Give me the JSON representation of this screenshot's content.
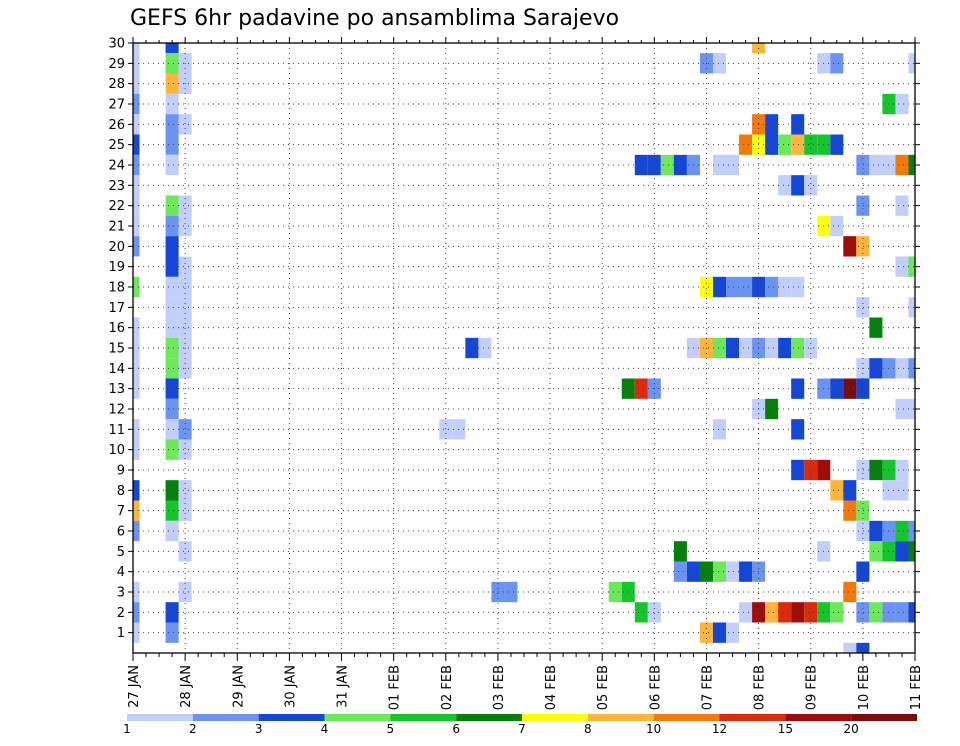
{
  "chart_data": {
    "type": "heatmap",
    "title": "GEFS 6hr padavine po ansamblima Sarajevo",
    "xlabel": "",
    "ylabel": "",
    "x_labels": [
      "27 JAN",
      "28 JAN",
      "29 JAN",
      "30 JAN",
      "31 JAN",
      "01 FEB",
      "02 FEB",
      "03 FEB",
      "04 FEB",
      "05 FEB",
      "06 FEB",
      "07 FEB",
      "08 FEB",
      "09 FEB",
      "10 FEB",
      "11 FEB"
    ],
    "y_labels": [
      "1",
      "2",
      "3",
      "4",
      "5",
      "6",
      "7",
      "8",
      "9",
      "10",
      "11",
      "12",
      "13",
      "14",
      "15",
      "16",
      "17",
      "18",
      "19",
      "20",
      "21",
      "22",
      "23",
      "24",
      "25",
      "26",
      "27",
      "28",
      "29",
      "30"
    ],
    "ylim": [
      0,
      30
    ],
    "time_steps": 61,
    "grid": true,
    "legend": {
      "position": "bottom",
      "labels": [
        "1",
        "2",
        "3",
        "4",
        "5",
        "6",
        "7",
        "8",
        "10",
        "12",
        "15",
        "20"
      ],
      "colors": [
        "#c1cffa",
        "#6b94f2",
        "#1446d8",
        "#6ce85a",
        "#16c42c",
        "#06800c",
        "#ffff0a",
        "#ffb43c",
        "#f37a0a",
        "#dc2a0a",
        "#a00c0a",
        "#7a0c0a"
      ]
    },
    "cells": [
      {
        "member": 30,
        "cells": [
          [
            0,
            1
          ],
          [
            3,
            3
          ],
          [
            48,
            8
          ]
        ]
      },
      {
        "member": 29,
        "cells": [
          [
            0,
            1
          ],
          [
            3,
            4
          ],
          [
            4,
            1
          ],
          [
            44,
            2
          ],
          [
            45,
            1
          ],
          [
            53,
            1
          ],
          [
            54,
            2
          ],
          [
            60,
            1
          ]
        ]
      },
      {
        "member": 28,
        "cells": [
          [
            0,
            1
          ],
          [
            3,
            8
          ],
          [
            4,
            1
          ]
        ]
      },
      {
        "member": 27,
        "cells": [
          [
            0,
            2
          ],
          [
            3,
            1
          ],
          [
            58,
            5
          ],
          [
            59,
            1
          ]
        ]
      },
      {
        "member": 26,
        "cells": [
          [
            0,
            1
          ],
          [
            3,
            2
          ],
          [
            4,
            1
          ],
          [
            48,
            9
          ],
          [
            49,
            3
          ],
          [
            51,
            3
          ]
        ]
      },
      {
        "member": 25,
        "cells": [
          [
            0,
            3
          ],
          [
            3,
            2
          ],
          [
            47,
            9
          ],
          [
            48,
            7
          ],
          [
            49,
            3
          ],
          [
            50,
            4
          ],
          [
            51,
            8
          ],
          [
            52,
            5
          ],
          [
            53,
            5
          ],
          [
            54,
            3
          ]
        ]
      },
      {
        "member": 24,
        "cells": [
          [
            0,
            2
          ],
          [
            3,
            1
          ],
          [
            39,
            3
          ],
          [
            40,
            3
          ],
          [
            41,
            4
          ],
          [
            42,
            3
          ],
          [
            43,
            2
          ],
          [
            45,
            1
          ],
          [
            46,
            1
          ],
          [
            56,
            2
          ],
          [
            57,
            1
          ],
          [
            58,
            1
          ],
          [
            59,
            9
          ],
          [
            60,
            6
          ]
        ]
      },
      {
        "member": 23,
        "cells": [
          [
            0,
            1
          ],
          [
            50,
            1
          ],
          [
            51,
            3
          ],
          [
            52,
            1
          ]
        ]
      },
      {
        "member": 22,
        "cells": [
          [
            0,
            1
          ],
          [
            3,
            4
          ],
          [
            4,
            1
          ],
          [
            56,
            2
          ],
          [
            59,
            1
          ]
        ]
      },
      {
        "member": 21,
        "cells": [
          [
            0,
            1
          ],
          [
            3,
            2
          ],
          [
            4,
            1
          ],
          [
            53,
            7
          ],
          [
            54,
            1
          ]
        ]
      },
      {
        "member": 20,
        "cells": [
          [
            0,
            2
          ],
          [
            3,
            3
          ],
          [
            55,
            11
          ],
          [
            56,
            8
          ]
        ]
      },
      {
        "member": 19,
        "cells": [
          [
            3,
            3
          ],
          [
            4,
            1
          ],
          [
            59,
            1
          ],
          [
            60,
            4
          ]
        ]
      },
      {
        "member": 18,
        "cells": [
          [
            0,
            4
          ],
          [
            3,
            1
          ],
          [
            4,
            1
          ],
          [
            44,
            7
          ],
          [
            45,
            3
          ],
          [
            46,
            2
          ],
          [
            47,
            2
          ],
          [
            48,
            3
          ],
          [
            49,
            2
          ],
          [
            50,
            1
          ],
          [
            51,
            1
          ]
        ]
      },
      {
        "member": 17,
        "cells": [
          [
            3,
            1
          ],
          [
            4,
            1
          ],
          [
            56,
            1
          ],
          [
            60,
            1
          ]
        ]
      },
      {
        "member": 16,
        "cells": [
          [
            0,
            1
          ],
          [
            3,
            1
          ],
          [
            4,
            1
          ],
          [
            57,
            6
          ]
        ]
      },
      {
        "member": 15,
        "cells": [
          [
            0,
            1
          ],
          [
            3,
            4
          ],
          [
            4,
            1
          ],
          [
            26,
            3
          ],
          [
            27,
            1
          ],
          [
            43,
            1
          ],
          [
            44,
            8
          ],
          [
            45,
            4
          ],
          [
            46,
            3
          ],
          [
            47,
            1
          ],
          [
            48,
            2
          ],
          [
            49,
            1
          ],
          [
            50,
            3
          ],
          [
            51,
            4
          ],
          [
            52,
            1
          ]
        ]
      },
      {
        "member": 14,
        "cells": [
          [
            0,
            1
          ],
          [
            3,
            4
          ],
          [
            4,
            1
          ],
          [
            56,
            1
          ],
          [
            57,
            3
          ],
          [
            58,
            2
          ],
          [
            59,
            1
          ],
          [
            60,
            2
          ]
        ]
      },
      {
        "member": 13,
        "cells": [
          [
            0,
            1
          ],
          [
            3,
            3
          ],
          [
            38,
            6
          ],
          [
            39,
            10
          ],
          [
            40,
            2
          ],
          [
            51,
            3
          ],
          [
            53,
            2
          ],
          [
            54,
            3
          ],
          [
            55,
            12
          ],
          [
            56,
            3
          ]
        ]
      },
      {
        "member": 12,
        "cells": [
          [
            3,
            2
          ],
          [
            48,
            1
          ],
          [
            49,
            6
          ],
          [
            59,
            1
          ],
          [
            60,
            1
          ]
        ]
      },
      {
        "member": 11,
        "cells": [
          [
            0,
            1
          ],
          [
            3,
            1
          ],
          [
            4,
            2
          ],
          [
            24,
            1
          ],
          [
            25,
            1
          ],
          [
            45,
            1
          ],
          [
            51,
            3
          ]
        ]
      },
      {
        "member": 10,
        "cells": [
          [
            0,
            1
          ],
          [
            3,
            4
          ],
          [
            4,
            1
          ]
        ]
      },
      {
        "member": 9,
        "cells": [
          [
            51,
            3
          ],
          [
            52,
            10
          ],
          [
            53,
            11
          ],
          [
            56,
            1
          ],
          [
            57,
            6
          ],
          [
            58,
            5
          ],
          [
            59,
            1
          ]
        ]
      },
      {
        "member": 8,
        "cells": [
          [
            0,
            3
          ],
          [
            3,
            6
          ],
          [
            4,
            1
          ],
          [
            54,
            8
          ],
          [
            55,
            3
          ],
          [
            58,
            1
          ],
          [
            59,
            1
          ]
        ]
      },
      {
        "member": 7,
        "cells": [
          [
            0,
            8
          ],
          [
            3,
            5
          ],
          [
            4,
            1
          ],
          [
            55,
            9
          ],
          [
            56,
            4
          ]
        ]
      },
      {
        "member": 6,
        "cells": [
          [
            0,
            2
          ],
          [
            3,
            1
          ],
          [
            56,
            1
          ],
          [
            57,
            3
          ],
          [
            58,
            2
          ],
          [
            59,
            5
          ],
          [
            60,
            2
          ]
        ]
      },
      {
        "member": 5,
        "cells": [
          [
            4,
            1
          ],
          [
            42,
            6
          ],
          [
            53,
            1
          ],
          [
            57,
            4
          ],
          [
            58,
            5
          ],
          [
            59,
            3
          ],
          [
            60,
            6
          ]
        ]
      },
      {
        "member": 4,
        "cells": [
          [
            42,
            2
          ],
          [
            43,
            3
          ],
          [
            44,
            6
          ],
          [
            45,
            4
          ],
          [
            46,
            1
          ],
          [
            47,
            3
          ],
          [
            48,
            2
          ],
          [
            56,
            3
          ]
        ]
      },
      {
        "member": 3,
        "cells": [
          [
            0,
            1
          ],
          [
            4,
            1
          ],
          [
            28,
            2
          ],
          [
            29,
            2
          ],
          [
            37,
            4
          ],
          [
            38,
            5
          ],
          [
            55,
            9
          ]
        ]
      },
      {
        "member": 2,
        "cells": [
          [
            0,
            2
          ],
          [
            3,
            3
          ],
          [
            39,
            5
          ],
          [
            40,
            1
          ],
          [
            47,
            1
          ],
          [
            48,
            11
          ],
          [
            49,
            8
          ],
          [
            50,
            10
          ],
          [
            51,
            11
          ],
          [
            52,
            10
          ],
          [
            53,
            5
          ],
          [
            54,
            4
          ],
          [
            56,
            2
          ],
          [
            57,
            4
          ],
          [
            58,
            2
          ],
          [
            59,
            2
          ],
          [
            60,
            3
          ]
        ]
      },
      {
        "member": 1,
        "cells": [
          [
            0,
            1
          ],
          [
            3,
            2
          ],
          [
            44,
            8
          ],
          [
            45,
            3
          ],
          [
            46,
            1
          ]
        ]
      },
      {
        "member": 0,
        "cells": [
          [
            55,
            1
          ],
          [
            56,
            3
          ]
        ]
      }
    ]
  }
}
